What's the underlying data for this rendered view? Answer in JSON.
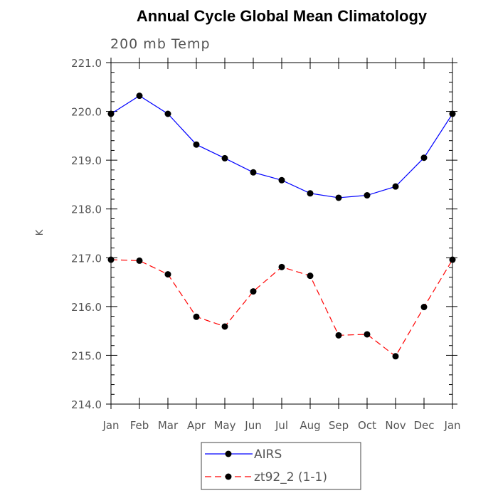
{
  "chart_data": {
    "type": "line",
    "title": "Annual Cycle Global Mean Climatology",
    "subtitle": "200 mb Temp",
    "xlabel": "",
    "ylabel": "K",
    "categories": [
      "Jan",
      "Feb",
      "Mar",
      "Apr",
      "May",
      "Jun",
      "Jul",
      "Aug",
      "Sep",
      "Oct",
      "Nov",
      "Dec",
      "Jan"
    ],
    "ylim": [
      214.0,
      221.0
    ],
    "yticks": [
      214.0,
      215.0,
      216.0,
      217.0,
      218.0,
      219.0,
      220.0,
      221.0
    ],
    "ytick_labels": [
      "214.0",
      "215.0",
      "216.0",
      "217.0",
      "218.0",
      "219.0",
      "220.0",
      "221.0"
    ],
    "grid": false,
    "legend_position": "bottom",
    "series": [
      {
        "name": "AIRS",
        "color": "#0000ff",
        "dash": "solid",
        "marker": "filled-circle",
        "values": [
          219.95,
          220.32,
          219.95,
          219.32,
          219.04,
          218.75,
          218.59,
          218.32,
          218.23,
          218.28,
          218.46,
          219.05,
          219.95
        ]
      },
      {
        "name": "zt92_2 (1-1)",
        "color": "#ff0000",
        "dash": "dashed",
        "marker": "filled-circle",
        "values": [
          216.96,
          216.94,
          216.66,
          215.79,
          215.59,
          216.31,
          216.81,
          216.63,
          215.41,
          215.43,
          214.98,
          215.99,
          216.96
        ]
      }
    ]
  }
}
